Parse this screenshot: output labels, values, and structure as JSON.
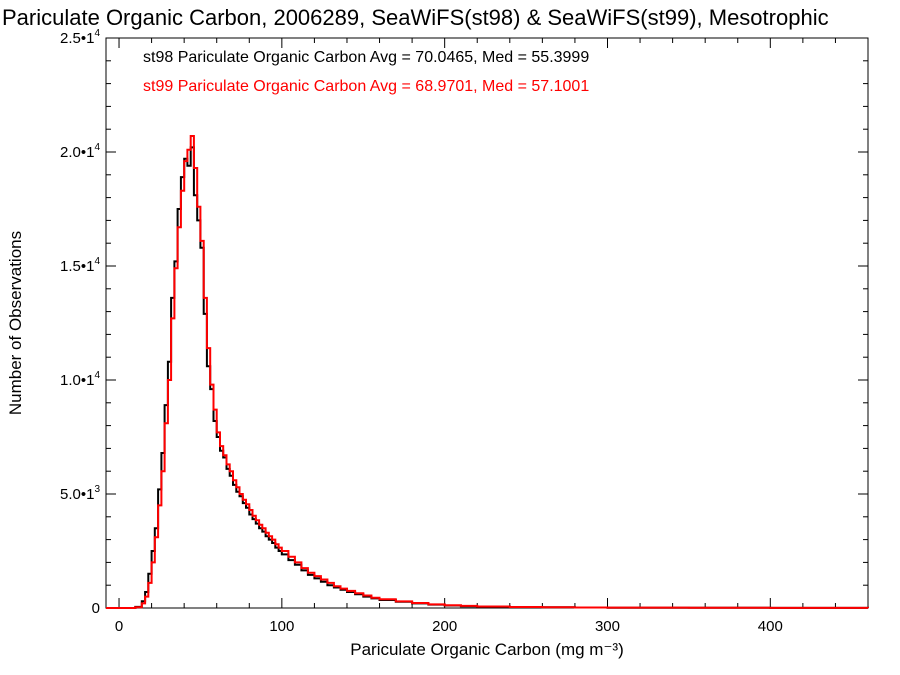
{
  "chart_data": {
    "type": "line",
    "title": "Pariculate Organic Carbon, 2006289, SeaWiFS(st98) & SeaWiFS(st99), Mesotrophic",
    "xlabel": "Pariculate Organic Carbon (mg m⁻³)",
    "ylabel": "Number of Observations",
    "xlim": [
      -8,
      460
    ],
    "ylim": [
      0,
      25000
    ],
    "step": "histogram",
    "grid": false,
    "x_ticks": [
      {
        "value": 0,
        "label": "0"
      },
      {
        "value": 100,
        "label": "100"
      },
      {
        "value": 200,
        "label": "200"
      },
      {
        "value": 300,
        "label": "300"
      },
      {
        "value": 400,
        "label": "400"
      }
    ],
    "y_ticks": [
      {
        "value": 0,
        "mantissa": "0",
        "exp": ""
      },
      {
        "value": 5000,
        "mantissa": "5.0•1",
        "exp": "3"
      },
      {
        "value": 10000,
        "mantissa": "1.0•1",
        "exp": "4"
      },
      {
        "value": 15000,
        "mantissa": "1.5•1",
        "exp": "4"
      },
      {
        "value": 20000,
        "mantissa": "2.0•1",
        "exp": "4"
      },
      {
        "value": 25000,
        "mantissa": "2.5•1",
        "exp": "4"
      }
    ],
    "series": [
      {
        "name": "st98 Pariculate Organic Carbon Avg = 70.0465, Med = 55.3999",
        "color": "#000000",
        "x": [
          -8,
          10,
          14,
          16,
          18,
          20,
          22,
          24,
          26,
          28,
          30,
          32,
          34,
          36,
          38,
          40,
          42,
          44,
          46,
          48,
          50,
          52,
          54,
          56,
          58,
          60,
          62,
          64,
          66,
          68,
          70,
          72,
          74,
          76,
          78,
          80,
          82,
          84,
          86,
          88,
          90,
          92,
          94,
          96,
          98,
          100,
          104,
          108,
          112,
          116,
          120,
          124,
          128,
          132,
          136,
          140,
          145,
          150,
          155,
          160,
          170,
          180,
          190,
          200,
          210,
          220,
          240,
          260,
          280,
          300,
          350,
          400,
          460
        ],
        "y": [
          0,
          50,
          300,
          700,
          1500,
          2500,
          3500,
          5200,
          6800,
          8900,
          10800,
          13600,
          15200,
          17500,
          18900,
          19700,
          19400,
          20200,
          18100,
          17000,
          15800,
          12900,
          10600,
          9600,
          8200,
          7500,
          6900,
          6600,
          6100,
          5800,
          5400,
          5100,
          4900,
          4600,
          4400,
          4100,
          3900,
          3700,
          3500,
          3350,
          3150,
          3000,
          2850,
          2650,
          2500,
          2350,
          2100,
          1900,
          1650,
          1450,
          1300,
          1150,
          1000,
          900,
          800,
          700,
          600,
          500,
          420,
          350,
          270,
          200,
          150,
          110,
          80,
          60,
          40,
          30,
          20,
          15,
          10,
          5,
          0
        ]
      },
      {
        "name": "st99 Pariculate Organic Carbon Avg = 68.9701, Med = 57.1001",
        "color": "#ff0000",
        "x": [
          -8,
          10,
          14,
          16,
          18,
          20,
          22,
          24,
          26,
          28,
          30,
          32,
          34,
          36,
          38,
          40,
          42,
          44,
          46,
          48,
          50,
          52,
          54,
          56,
          58,
          60,
          62,
          64,
          66,
          68,
          70,
          72,
          74,
          76,
          78,
          80,
          82,
          84,
          86,
          88,
          90,
          92,
          94,
          96,
          98,
          100,
          104,
          108,
          112,
          116,
          120,
          124,
          128,
          132,
          136,
          140,
          145,
          150,
          155,
          160,
          170,
          180,
          190,
          200,
          210,
          220,
          240,
          260,
          280,
          300,
          350,
          400,
          460
        ],
        "y": [
          0,
          30,
          200,
          500,
          1100,
          2000,
          3100,
          4500,
          6000,
          8100,
          10000,
          12700,
          14900,
          16700,
          18300,
          19600,
          20100,
          20700,
          19300,
          17600,
          16100,
          13600,
          11400,
          9800,
          8700,
          7700,
          7100,
          6700,
          6300,
          6000,
          5600,
          5300,
          5000,
          4750,
          4550,
          4300,
          4050,
          3850,
          3650,
          3500,
          3300,
          3150,
          3000,
          2800,
          2650,
          2500,
          2250,
          2000,
          1750,
          1550,
          1400,
          1250,
          1100,
          950,
          850,
          750,
          650,
          550,
          450,
          380,
          290,
          220,
          160,
          120,
          90,
          65,
          45,
          32,
          22,
          16,
          10,
          5,
          0
        ]
      }
    ]
  }
}
